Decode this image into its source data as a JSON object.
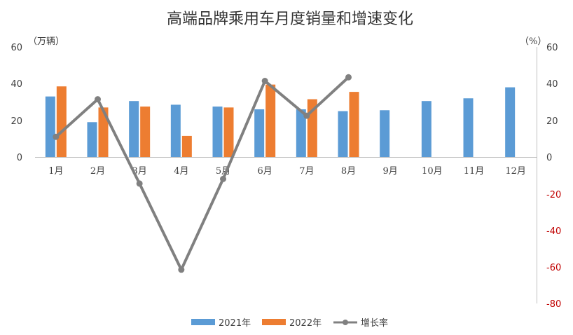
{
  "chart_data": {
    "type": "bar",
    "title": "高端品牌乘用车月度销量和增速变化",
    "left_unit": "（万辆）",
    "right_unit": "（%）",
    "categories": [
      "1月",
      "2月",
      "3月",
      "4月",
      "5月",
      "6月",
      "7月",
      "8月",
      "9月",
      "10月",
      "11月",
      "12月"
    ],
    "left_ticks": [
      "60",
      "40",
      "20",
      "0"
    ],
    "right_ticks": [
      "60",
      "40",
      "20",
      "0",
      "-20",
      "-40",
      "-60",
      "-80"
    ],
    "left_ylim": [
      0,
      60
    ],
    "right_ylim": [
      -80,
      60
    ],
    "series": [
      {
        "name": "2021年",
        "type": "bar",
        "axis": "left",
        "color": "#5b9bd5",
        "values": [
          33,
          19,
          30.5,
          28.5,
          27.5,
          26,
          26,
          25,
          25.5,
          30.5,
          32,
          38
        ]
      },
      {
        "name": "2022年",
        "type": "bar",
        "axis": "left",
        "color": "#ed7d31",
        "values": [
          38.5,
          27,
          27.5,
          11.5,
          27,
          39.5,
          31.5,
          35.5,
          null,
          null,
          null,
          null
        ]
      },
      {
        "name": "增长率",
        "type": "line",
        "axis": "right",
        "color": "#808080",
        "values": [
          11,
          31.5,
          -14.5,
          -61.5,
          -12,
          41.5,
          22.5,
          43.5,
          null,
          null,
          null,
          null
        ]
      }
    ],
    "legend_position": "bottom",
    "grid": false
  }
}
